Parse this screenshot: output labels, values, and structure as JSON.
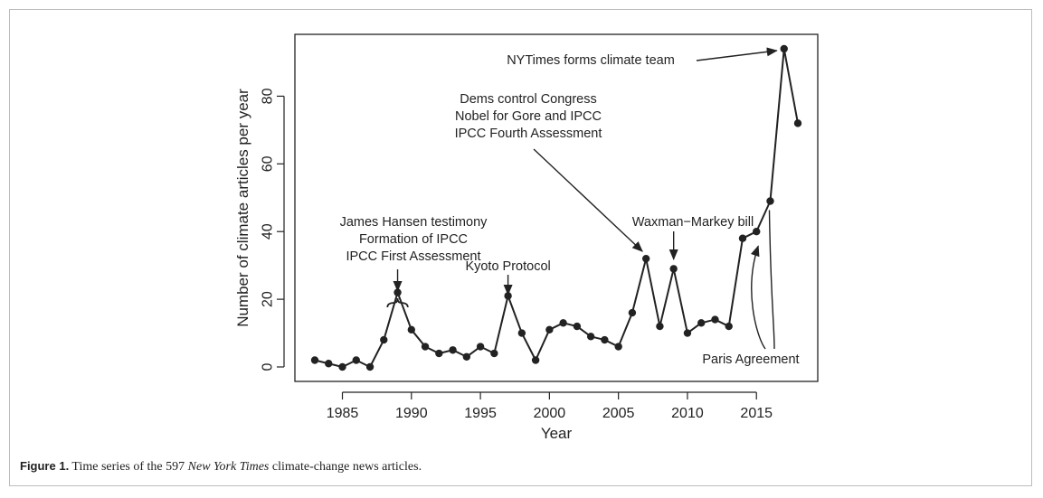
{
  "chart_data": {
    "type": "line",
    "title": "",
    "xlabel": "Year",
    "ylabel": "Number of climate articles per year",
    "xlim": [
      1983,
      2018
    ],
    "ylim": [
      0,
      94
    ],
    "xticks": [
      1985,
      1990,
      1995,
      2000,
      2005,
      2010,
      2015
    ],
    "yticks": [
      0,
      20,
      40,
      60,
      80
    ],
    "grid": false,
    "x": [
      1983,
      1984,
      1985,
      1986,
      1987,
      1988,
      1989,
      1990,
      1991,
      1992,
      1993,
      1994,
      1995,
      1996,
      1997,
      1998,
      1999,
      2000,
      2001,
      2002,
      2003,
      2004,
      2005,
      2006,
      2007,
      2008,
      2009,
      2010,
      2011,
      2012,
      2013,
      2014,
      2015,
      2016,
      2017,
      2018
    ],
    "series": [
      {
        "values": [
          2,
          1,
          0,
          2,
          0,
          8,
          22,
          11,
          6,
          4,
          5,
          3,
          6,
          4,
          21,
          10,
          2,
          11,
          13,
          12,
          9,
          8,
          6,
          16,
          32,
          12,
          29,
          10,
          13,
          14,
          12,
          38,
          40,
          49,
          94,
          72
        ]
      }
    ],
    "annotations": [
      {
        "lines": [
          "NYTimes forms climate team"
        ],
        "target": [
          2017,
          94
        ]
      },
      {
        "lines": [
          "Dems control Congress",
          "Nobel for Gore and IPCC",
          "IPCC Fourth Assessment"
        ],
        "target": [
          2007,
          32
        ]
      },
      {
        "lines": [
          "James Hansen testimony",
          "Formation of IPCC",
          "IPCC First Assessment"
        ],
        "target": [
          1989,
          22
        ],
        "bracket": [
          1988,
          1990
        ]
      },
      {
        "lines": [
          "Kyoto Protocol"
        ],
        "target": [
          1997,
          21
        ]
      },
      {
        "lines": [
          "Waxman−Markey bill"
        ],
        "target": [
          2009,
          29
        ]
      },
      {
        "lines": [
          "Paris Agreement"
        ],
        "targets": [
          [
            2015,
            40
          ],
          [
            2016,
            49
          ]
        ]
      }
    ]
  },
  "caption": {
    "label": "Figure 1.",
    "text_before": " Time series of the 597 ",
    "emphasis": "New York Times",
    "text_after": " climate-change news articles."
  }
}
